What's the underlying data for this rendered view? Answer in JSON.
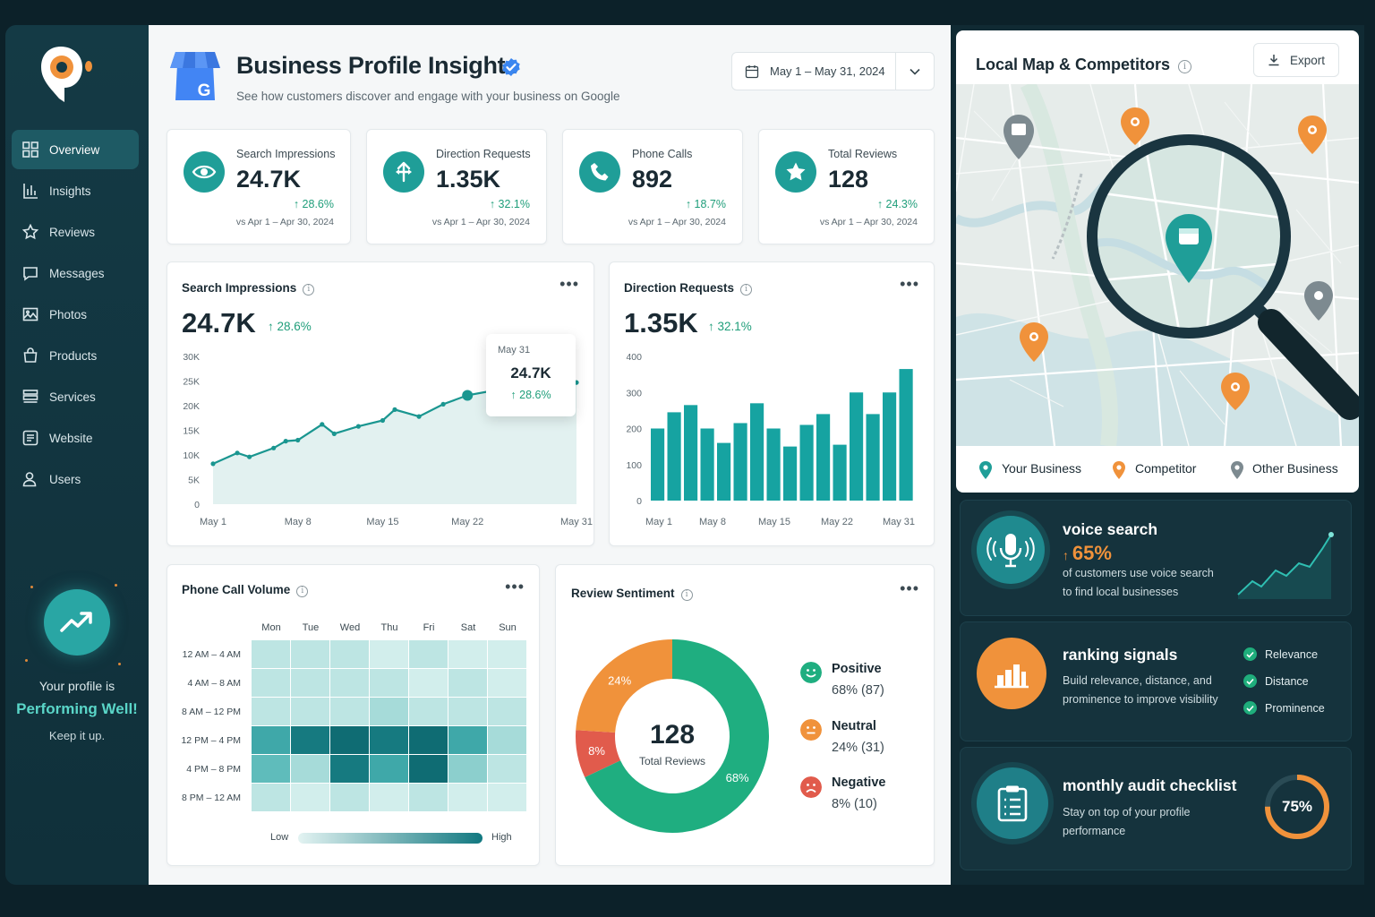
{
  "sidebar": {
    "items": [
      {
        "label": "Overview",
        "icon": "grid-icon",
        "active": true
      },
      {
        "label": "Insights",
        "icon": "bar-chart-icon"
      },
      {
        "label": "Reviews",
        "icon": "star-icon"
      },
      {
        "label": "Messages",
        "icon": "chat-icon"
      },
      {
        "label": "Photos",
        "icon": "image-icon"
      },
      {
        "label": "Products",
        "icon": "bag-icon"
      },
      {
        "label": "Services",
        "icon": "list-icon"
      },
      {
        "label": "Website",
        "icon": "globe-icon"
      },
      {
        "label": "Users",
        "icon": "user-icon"
      }
    ],
    "status": {
      "line1": "Your profile is",
      "line2": "Performing Well!",
      "line3": "Keep it up."
    }
  },
  "header": {
    "title": "Business Profile Insights",
    "subtitle": "See how customers discover and engage with your business on Google",
    "date_range": "May 1 – May 31, 2024"
  },
  "kpis": [
    {
      "label": "Search Impressions",
      "value": "24.7K",
      "change": "28.6%",
      "compare": "vs Apr 1 – Apr 30, 2024",
      "icon": "eye-icon"
    },
    {
      "label": "Direction Requests",
      "value": "1.35K",
      "change": "32.1%",
      "compare": "vs Apr 1 – Apr 30, 2024",
      "icon": "directions-icon"
    },
    {
      "label": "Phone Calls",
      "value": "892",
      "change": "18.7%",
      "compare": "vs Apr 1 – Apr 30, 2024",
      "icon": "phone-icon"
    },
    {
      "label": "Total Reviews",
      "value": "128",
      "change": "24.3%",
      "compare": "vs Apr 1 – Apr 30, 2024",
      "icon": "star-icon"
    }
  ],
  "search_chart": {
    "title": "Search Impressions",
    "value": "24.7K",
    "change": "28.6%",
    "tooltip": {
      "date": "May 31",
      "value": "24.7K",
      "change": "28.6%"
    }
  },
  "directions_chart": {
    "title": "Direction Requests",
    "value": "1.35K",
    "change": "32.1%"
  },
  "chart_data": [
    {
      "type": "area",
      "x": [
        "May 1",
        "May 3",
        "May 4",
        "May 6",
        "May 7",
        "May 8",
        "May 10",
        "May 11",
        "May 13",
        "May 15",
        "May 16",
        "May 18",
        "May 20",
        "May 22",
        "May 24",
        "May 26",
        "May 28",
        "May 31"
      ],
      "y": [
        8200,
        10400,
        9600,
        11400,
        12800,
        13000,
        16200,
        14300,
        15800,
        17000,
        19200,
        17800,
        20300,
        22100,
        23000,
        23600,
        24200,
        24700
      ],
      "xticks": [
        "May 1",
        "May 8",
        "May 15",
        "May 22",
        "May 31"
      ],
      "yticks": [
        "0",
        "5K",
        "10K",
        "15K",
        "20K",
        "25K",
        "30K"
      ],
      "ylim": [
        0,
        30000
      ]
    },
    {
      "type": "bar",
      "categories": [
        "May 1",
        "May 2",
        "May 3",
        "May 4",
        "May 5",
        "May 6",
        "May 7",
        "May 8",
        "May 9",
        "May 10",
        "May 11",
        "May 12",
        "May 13",
        "May 14",
        "May 15",
        "May 16"
      ],
      "values": [
        200,
        245,
        265,
        200,
        160,
        215,
        270,
        200,
        150,
        210,
        240,
        155,
        300,
        240,
        300,
        365
      ],
      "xticks": [
        "May 1",
        "May 8",
        "May 15",
        "May 22",
        "May 31"
      ],
      "yticks": [
        "0",
        "100",
        "200",
        "300",
        "400"
      ],
      "ylim": [
        0,
        400
      ]
    },
    {
      "type": "heatmap",
      "days": [
        "Mon",
        "Tue",
        "Wed",
        "Thu",
        "Fri",
        "Sat",
        "Sun"
      ],
      "times": [
        "12 AM – 4 AM",
        "4 AM – 8 AM",
        "8 AM – 12 PM",
        "12 PM – 4 PM",
        "4 PM – 8 PM",
        "8 PM – 12 AM"
      ],
      "values": [
        [
          2,
          2,
          2,
          1,
          2,
          1,
          1
        ],
        [
          2,
          2,
          2,
          2,
          1,
          2,
          1
        ],
        [
          2,
          2,
          2,
          3,
          2,
          2,
          2
        ],
        [
          6,
          8,
          9,
          8,
          9,
          6,
          3
        ],
        [
          5,
          3,
          8,
          6,
          9,
          4,
          2
        ],
        [
          2,
          1,
          2,
          1,
          2,
          1,
          1
        ]
      ],
      "legend_low": "Low",
      "legend_high": "High"
    },
    {
      "type": "pie",
      "categories": [
        "Positive",
        "Neutral",
        "Negative"
      ],
      "values": [
        68,
        24,
        8
      ],
      "counts": [
        87,
        31,
        10
      ],
      "colors": [
        "#1fae80",
        "#f0923b",
        "#e15b4c"
      ],
      "center_value": "128",
      "center_label": "Total Reviews"
    }
  ],
  "phone_chart": {
    "title": "Phone Call Volume"
  },
  "sentiment": {
    "title": "Review Sentiment",
    "slices": [
      {
        "label": "8%",
        "pct": 8
      },
      {
        "label": "24%",
        "pct": 24
      },
      {
        "label": "68%",
        "pct": 68
      }
    ],
    "legend": [
      {
        "name": "Positive",
        "value": "68% (87)",
        "color": "#1fae80"
      },
      {
        "name": "Neutral",
        "value": "24% (31)",
        "color": "#f0923b"
      },
      {
        "name": "Negative",
        "value": "8% (10)",
        "color": "#e15b4c"
      }
    ]
  },
  "map": {
    "title": "Local Map & Competitors",
    "export_label": "Export",
    "legend": [
      {
        "label": "Your Business",
        "color": "#1f9e98"
      },
      {
        "label": "Competitor",
        "color": "#f0923b"
      },
      {
        "label": "Other Business",
        "color": "#7d8a90"
      }
    ]
  },
  "promos": {
    "voice": {
      "title": "voice search",
      "stat": "65%",
      "text1": "of customers use voice search",
      "text2": "to find local businesses"
    },
    "ranking": {
      "title": "ranking signals",
      "text1": "Build relevance, distance, and",
      "text2": "prominence to improve visibility",
      "checks": [
        "Relevance",
        "Distance",
        "Prominence"
      ]
    },
    "audit": {
      "title": "monthly audit checklist",
      "text1": "Stay on top of your profile",
      "text2": "performance",
      "percent": "75%",
      "progress": 0.75
    }
  },
  "colors": {
    "accent": "#1f9e98",
    "positive": "#1f9e7a",
    "orange": "#f0923b",
    "red": "#e15b4c",
    "dark": "#102a33"
  }
}
